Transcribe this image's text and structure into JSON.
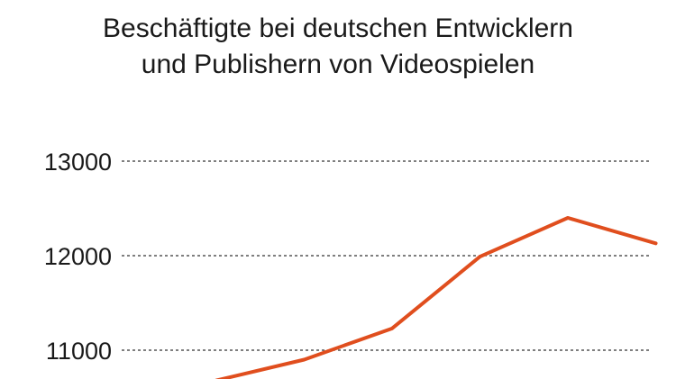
{
  "chart_data": {
    "type": "line",
    "title_lines": [
      "Beschäftigte bei deutschen Entwicklern",
      "und Publishern von Videospielen"
    ],
    "xlabel": "",
    "ylabel": "",
    "y_ticks": [
      {
        "value": 11000,
        "label": "11000"
      },
      {
        "value": 12000,
        "label": "12000"
      },
      {
        "value": 13000,
        "label": "13000"
      }
    ],
    "ylim": [
      10700,
      13600
    ],
    "grid": true,
    "series": [
      {
        "color": "#e04e1e",
        "values": [
          10680,
          10900,
          11230,
          11990,
          12400,
          12130
        ]
      }
    ]
  }
}
